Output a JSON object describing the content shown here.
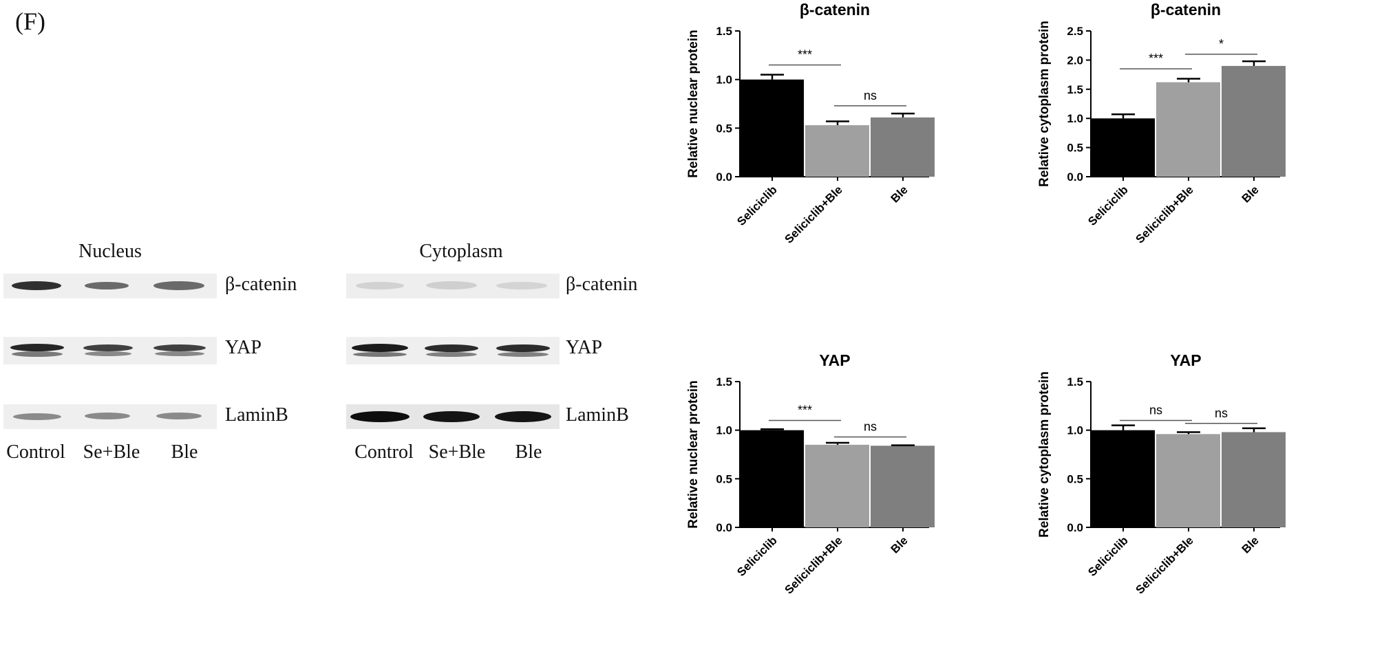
{
  "panel_label": "(F)",
  "blots": [
    {
      "title": "Nucleus",
      "markers": [
        "β-catenin",
        "YAP",
        "LaminB"
      ],
      "lanes": [
        "Control",
        "Se+Ble",
        "Ble"
      ]
    },
    {
      "title": "Cytoplasm",
      "markers": [
        "β-catenin",
        "YAP",
        "LaminB"
      ],
      "lanes": [
        "Control",
        "Se+Ble",
        "Ble"
      ]
    }
  ],
  "bar_colors": [
    "#000000",
    "#a0a0a0",
    "#7f7f7f"
  ],
  "chart_data": [
    {
      "type": "bar",
      "title": "β-catenin",
      "ylabel": "Relative nuclear protein",
      "categories": [
        "Seliciclib",
        "Seliciclib+Ble",
        "Ble"
      ],
      "values": [
        1.0,
        0.53,
        0.61
      ],
      "errors": [
        0.05,
        0.04,
        0.04
      ],
      "ylim": [
        0,
        1.5
      ],
      "yticks": [
        "0.0",
        "0.5",
        "1.0",
        "1.5"
      ],
      "annotations": [
        {
          "from": 0,
          "to": 1,
          "y": 1.15,
          "label": "***"
        },
        {
          "from": 1,
          "to": 2,
          "y": 0.73,
          "label": "ns"
        }
      ]
    },
    {
      "type": "bar",
      "title": "β-catenin",
      "ylabel": "Relative cytoplasm protein",
      "categories": [
        "Seliciclib",
        "Seliciclib+Ble",
        "Ble"
      ],
      "values": [
        1.0,
        1.62,
        1.9
      ],
      "errors": [
        0.07,
        0.06,
        0.08
      ],
      "ylim": [
        0,
        2.5
      ],
      "yticks": [
        "0.0",
        "0.5",
        "1.0",
        "1.5",
        "2.0",
        "2.5"
      ],
      "annotations": [
        {
          "from": 0,
          "to": 1,
          "y": 1.85,
          "label": "***"
        },
        {
          "from": 1,
          "to": 2,
          "y": 2.1,
          "label": "*"
        }
      ]
    },
    {
      "type": "bar",
      "title": "YAP",
      "ylabel": "Relative nuclear protein",
      "categories": [
        "Seliciclib",
        "Seliciclib+Ble",
        "Ble"
      ],
      "values": [
        1.0,
        0.85,
        0.84
      ],
      "errors": [
        0.01,
        0.02,
        0.005
      ],
      "ylim": [
        0,
        1.5
      ],
      "yticks": [
        "0.0",
        "0.5",
        "1.0",
        "1.5"
      ],
      "annotations": [
        {
          "from": 0,
          "to": 1,
          "y": 1.1,
          "label": "***"
        },
        {
          "from": 1,
          "to": 2,
          "y": 0.93,
          "label": "ns"
        }
      ]
    },
    {
      "type": "bar",
      "title": "YAP",
      "ylabel": "Relative cytoplasm protein",
      "categories": [
        "Seliciclib",
        "Seliciclib+Ble",
        "Ble"
      ],
      "values": [
        1.0,
        0.96,
        0.98
      ],
      "errors": [
        0.05,
        0.02,
        0.04
      ],
      "ylim": [
        0,
        1.5
      ],
      "yticks": [
        "0.0",
        "0.5",
        "1.0",
        "1.5"
      ],
      "annotations": [
        {
          "from": 0,
          "to": 1,
          "y": 1.1,
          "label": "ns"
        },
        {
          "from": 1,
          "to": 2,
          "y": 1.07,
          "label": "ns"
        }
      ]
    }
  ]
}
